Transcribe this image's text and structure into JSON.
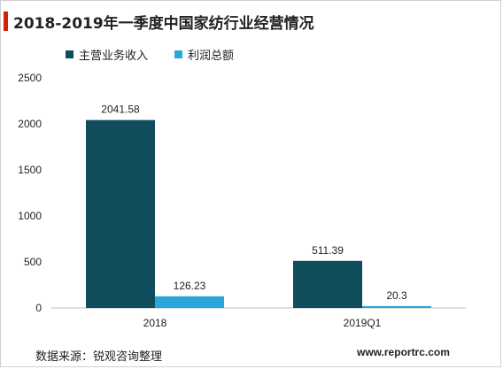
{
  "title": "2018-2019年一季度中国家纺行业经营情况",
  "source": "数据来源：锐观咨询整理",
  "website": "www.reportrc.com",
  "colors": {
    "accent": "#d81e06",
    "series1": "#0f4c5c",
    "series2": "#29a7db",
    "axis": "#bfbfbf",
    "text": "#222222"
  },
  "chart_data": {
    "type": "bar",
    "categories": [
      "2018",
      "2019Q1"
    ],
    "series": [
      {
        "name": "主营业务收入",
        "values": [
          2041.58,
          511.39
        ],
        "labels": [
          "2041.58",
          "511.39"
        ]
      },
      {
        "name": "利润总额",
        "values": [
          126.23,
          20.3
        ],
        "labels": [
          "126.23",
          "20.3"
        ]
      }
    ],
    "ylim": [
      0,
      2500
    ],
    "yticks": [
      "0",
      "500",
      "1000",
      "1500",
      "2000",
      "2500"
    ],
    "legend": "top-left",
    "grid": false
  }
}
